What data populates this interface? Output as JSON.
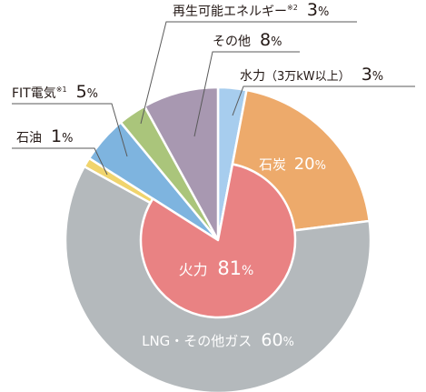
{
  "chart_data": {
    "type": "pie",
    "title": "",
    "series": [
      {
        "name": "水力",
        "detail": "（3万kW以上）",
        "value": 3,
        "label": "3",
        "unit": "%",
        "color": "#a7cdee"
      },
      {
        "name": "石炭",
        "value": 20,
        "label": "20",
        "unit": "%",
        "color": "#edaa6b"
      },
      {
        "name": "LNG・その他ガス",
        "value": 60,
        "label": "60",
        "unit": "%",
        "color": "#b4b9bc"
      },
      {
        "name": "石油",
        "value": 1,
        "label": "1",
        "unit": "%",
        "color": "#f0d46d"
      },
      {
        "name": "FIT電気",
        "note": "※1",
        "value": 5,
        "label": "5",
        "unit": "%",
        "color": "#7eb4df"
      },
      {
        "name": "再生可能エネルギー",
        "note": "※2",
        "value": 3,
        "label": "3",
        "unit": "%",
        "color": "#aac57b"
      },
      {
        "name": "その他",
        "value": 8,
        "label": "8",
        "unit": "%",
        "color": "#a898b1"
      }
    ],
    "inner_group": {
      "name": "火力",
      "value": 81,
      "label": "81",
      "unit": "%",
      "color": "#e98283",
      "members": [
        "石炭",
        "LNG・その他ガス",
        "石油"
      ]
    }
  }
}
